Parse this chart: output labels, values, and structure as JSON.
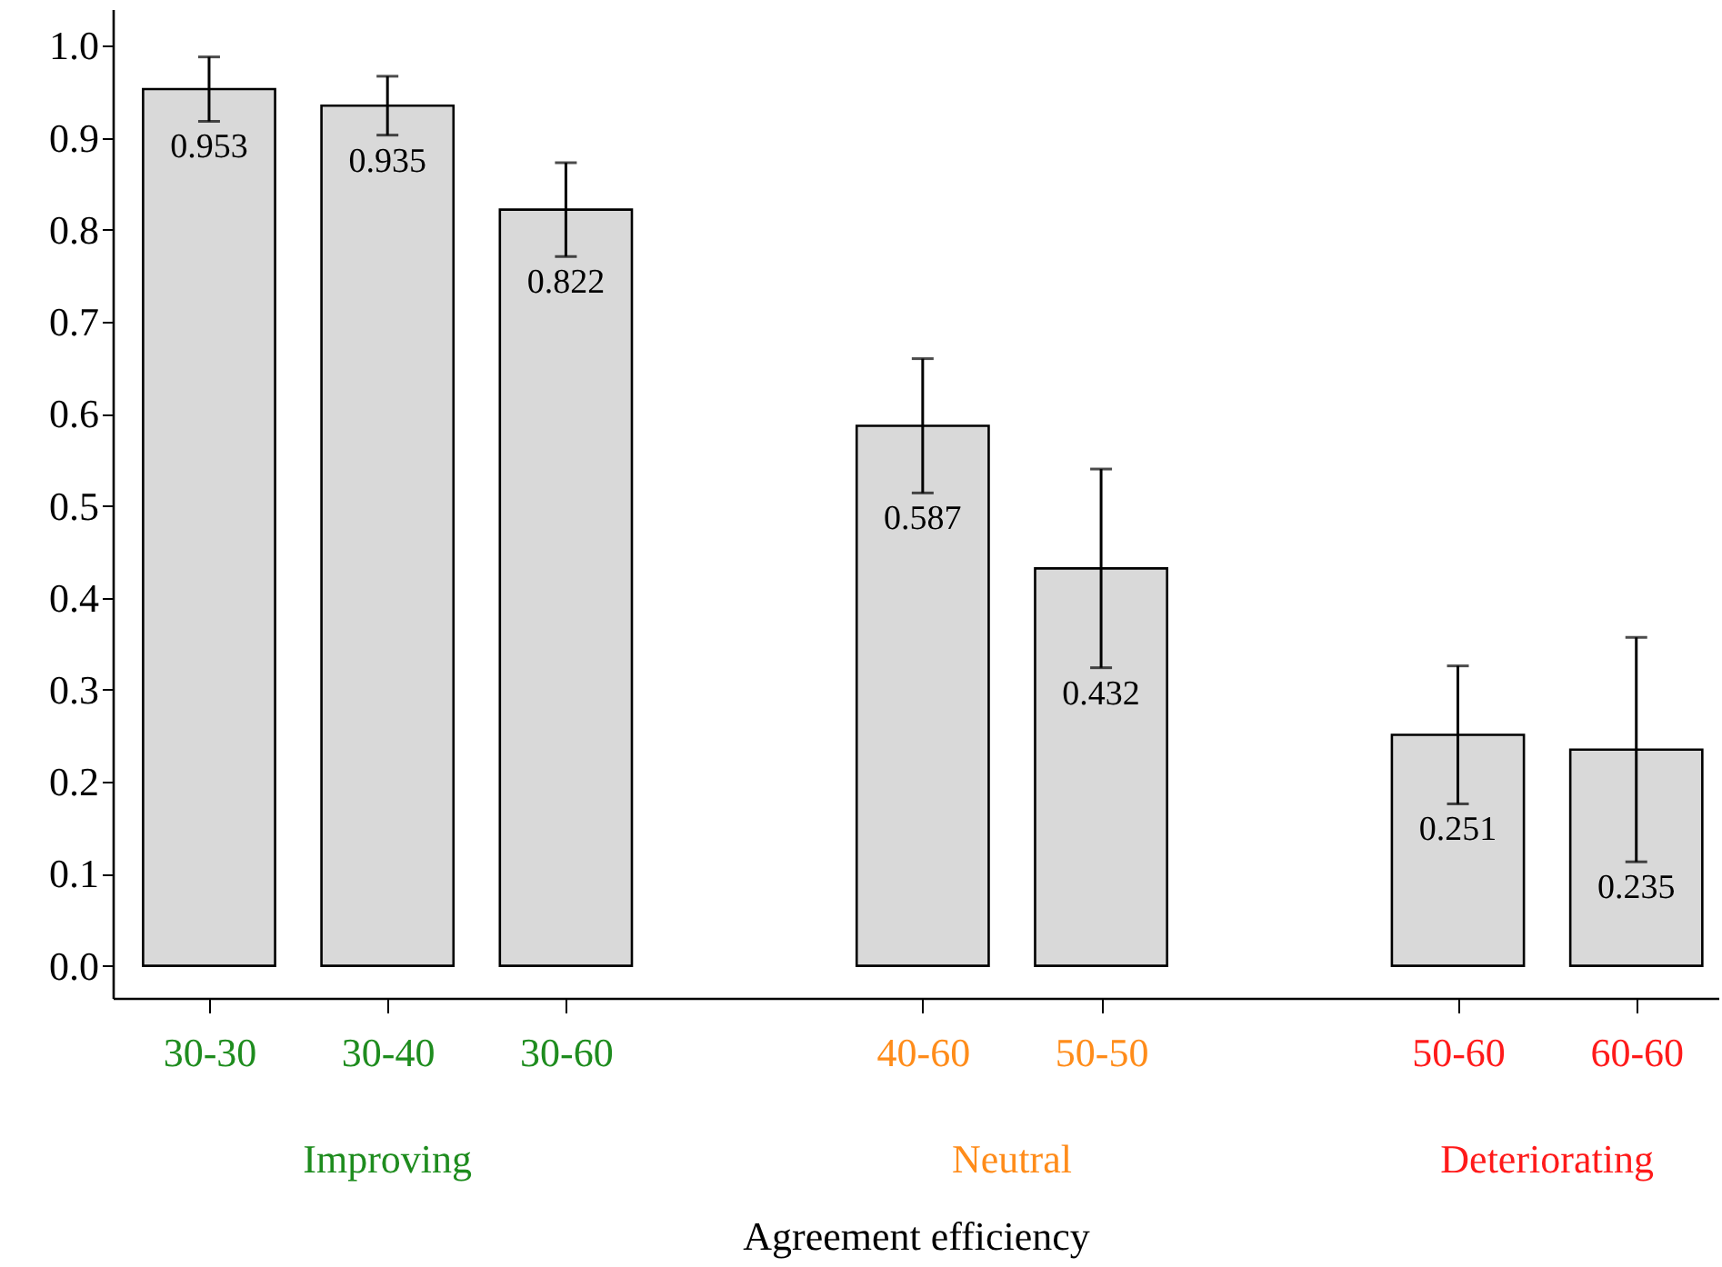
{
  "chart_data": {
    "type": "bar",
    "xlabel": "Agreement efficiency",
    "categories": [
      "30-30",
      "30-40",
      "30-60",
      null,
      "40-60",
      "50-50",
      null,
      "50-60",
      "60-60"
    ],
    "values": [
      0.953,
      0.935,
      0.822,
      null,
      0.587,
      0.432,
      null,
      0.251,
      0.235
    ],
    "errors": [
      0.035,
      0.032,
      0.051,
      null,
      0.073,
      0.108,
      null,
      0.075,
      0.122
    ],
    "color": "#d9d9d9",
    "data_labels": true,
    "grid": false,
    "ylim": [
      -0.035,
      1.04
    ],
    "yticks": [
      {
        "value": 0,
        "label": "0.0"
      },
      0.1,
      0.2,
      0.3,
      0.4,
      0.5,
      0.6,
      0.7,
      0.8,
      0.9,
      {
        "value": 1,
        "label": "1.0"
      }
    ],
    "annotations": [
      "Improving",
      "Neutral",
      "Deteriorating"
    ]
  }
}
